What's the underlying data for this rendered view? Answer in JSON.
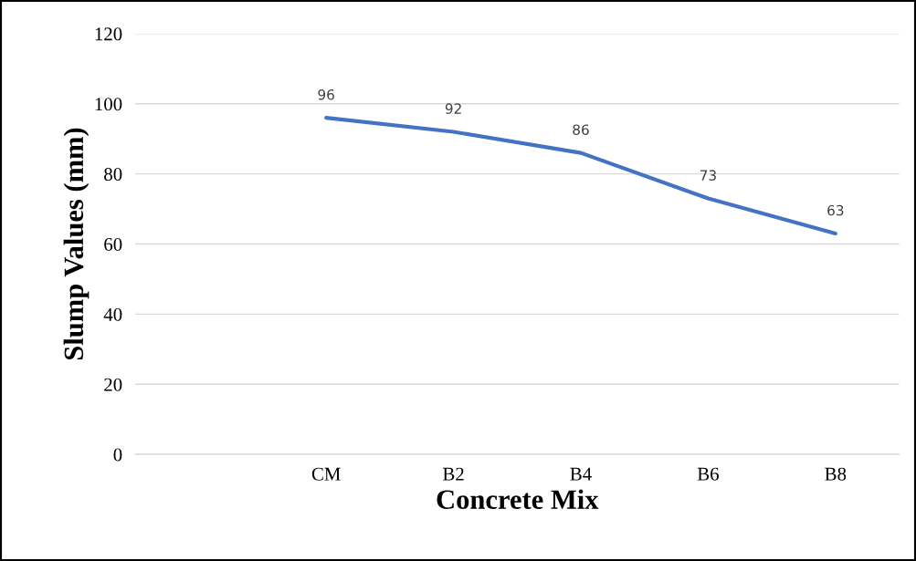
{
  "chart_data": {
    "type": "line",
    "xlabel": "Concrete Mix",
    "ylabel": "Slump Values (mm)",
    "categories": [
      null,
      "CM",
      "B2",
      "B4",
      "B6",
      "B8"
    ],
    "series": [
      {
        "color": "#4472c4",
        "values": [
          null,
          96,
          92,
          86,
          73,
          63
        ]
      }
    ],
    "ylim": [
      0,
      120
    ],
    "yticks": [
      0,
      20,
      40,
      60,
      80,
      100,
      120
    ],
    "grid": "y",
    "data_labels": true,
    "marker": "none",
    "line_style": "solid"
  }
}
